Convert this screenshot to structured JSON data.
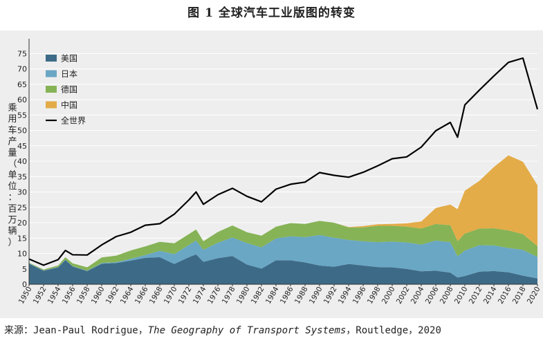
{
  "title": "图 1  全球汽车工业版图的转变",
  "source": {
    "prefix": "来源：Jean-Paul Rodrigue，",
    "book": "The Geography of Transport Systems",
    "suffix": "，Routledge，2020"
  },
  "chart_data": {
    "type": "area",
    "stacked": true,
    "ylabel": "乘用车产量（单位：百万辆）",
    "ylim": [
      0,
      78
    ],
    "yticks": [
      0,
      5,
      10,
      15,
      20,
      25,
      30,
      35,
      40,
      45,
      50,
      55,
      60,
      65,
      70,
      75
    ],
    "xlim": [
      1950,
      2020
    ],
    "xticks": [
      1950,
      1952,
      1954,
      1956,
      1958,
      1960,
      1962,
      1964,
      1966,
      1968,
      1970,
      1972,
      1974,
      1976,
      1978,
      1980,
      1982,
      1984,
      1986,
      1988,
      1990,
      1992,
      1994,
      1996,
      1998,
      2000,
      2002,
      2004,
      2006,
      2008,
      2010,
      2012,
      2014,
      2016,
      2018,
      2020
    ],
    "grid": true,
    "legend": "top-left",
    "x": [
      1950,
      1952,
      1954,
      1955,
      1956,
      1958,
      1960,
      1962,
      1964,
      1966,
      1968,
      1970,
      1972,
      1973,
      1974,
      1976,
      1978,
      1980,
      1982,
      1984,
      1986,
      1988,
      1990,
      1992,
      1994,
      1996,
      1998,
      2000,
      2002,
      2004,
      2006,
      2008,
      2009,
      2010,
      2012,
      2014,
      2016,
      2018,
      2020
    ],
    "series": [
      {
        "name": "美国",
        "color": "#3d6b87",
        "values": [
          6.7,
          4.4,
          5.5,
          7.9,
          5.8,
          4.3,
          6.7,
          6.9,
          7.7,
          8.6,
          8.8,
          6.6,
          8.8,
          9.7,
          7.3,
          8.5,
          9.2,
          6.4,
          5.1,
          7.8,
          7.8,
          7.1,
          6.1,
          5.7,
          6.6,
          6.1,
          5.6,
          5.5,
          5.0,
          4.2,
          4.4,
          3.8,
          2.2,
          2.7,
          4.1,
          4.3,
          3.9,
          2.8,
          1.9
        ]
      },
      {
        "name": "日本",
        "color": "#6aa7c4",
        "values": [
          0.1,
          0.1,
          0.1,
          0.1,
          0.1,
          0.1,
          0.2,
          0.3,
          0.6,
          0.9,
          2.1,
          3.2,
          4.0,
          4.5,
          3.9,
          5.0,
          6.0,
          7.0,
          6.9,
          7.1,
          7.8,
          8.2,
          9.9,
          9.4,
          7.8,
          7.9,
          8.1,
          8.4,
          8.6,
          8.7,
          9.8,
          9.9,
          6.9,
          8.3,
          8.6,
          8.3,
          7.9,
          8.4,
          7.0
        ]
      },
      {
        "name": "德国",
        "color": "#86b356",
        "values": [
          0.2,
          0.3,
          0.5,
          0.8,
          0.9,
          1.1,
          1.8,
          2.1,
          2.7,
          2.8,
          2.9,
          3.5,
          3.5,
          3.6,
          2.8,
          3.5,
          3.9,
          3.5,
          3.8,
          3.8,
          4.3,
          4.3,
          4.6,
          4.9,
          4.1,
          4.5,
          5.3,
          5.1,
          5.1,
          5.2,
          5.4,
          5.5,
          4.9,
          5.5,
          5.4,
          5.6,
          5.7,
          5.1,
          3.5
        ]
      },
      {
        "name": "中国",
        "color": "#e3ac48",
        "values": [
          0,
          0,
          0,
          0,
          0,
          0,
          0,
          0,
          0,
          0,
          0,
          0,
          0,
          0,
          0,
          0,
          0,
          0,
          0,
          0,
          0,
          0,
          0,
          0,
          0.1,
          0.4,
          0.5,
          0.6,
          1.1,
          2.3,
          5.2,
          6.7,
          10.4,
          13.9,
          15.5,
          19.9,
          24.4,
          23.5,
          19.8
        ]
      },
      {
        "name": "全世界",
        "color": "#000000",
        "kind": "line",
        "values": [
          8.2,
          6.2,
          8.0,
          11.0,
          9.6,
          9.5,
          12.8,
          15.5,
          16.9,
          19.2,
          19.7,
          22.8,
          27.4,
          30.0,
          26.0,
          29.1,
          31.2,
          28.6,
          26.8,
          30.9,
          32.5,
          33.2,
          36.3,
          35.4,
          34.8,
          36.4,
          38.5,
          40.8,
          41.4,
          44.6,
          49.9,
          52.6,
          47.8,
          58.3,
          63.1,
          67.7,
          72.1,
          73.5,
          56.9
        ]
      }
    ]
  }
}
